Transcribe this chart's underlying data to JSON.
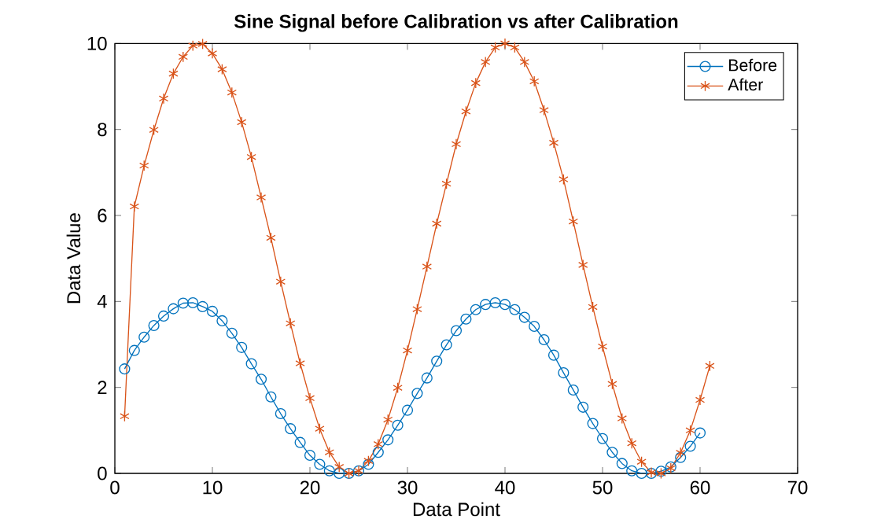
{
  "chart_data": {
    "type": "line",
    "title": "Sine Signal before Calibration vs after Calibration",
    "xlabel": "Data Point",
    "ylabel": "Data Value",
    "xlim": [
      0,
      70
    ],
    "xticks": [
      0,
      10,
      20,
      30,
      40,
      50,
      60,
      70
    ],
    "ylim": [
      0,
      10
    ],
    "yticks": [
      0,
      2,
      4,
      6,
      8,
      10
    ],
    "grid": false,
    "legend": "top right",
    "line_style": "solid",
    "series": [
      {
        "name": "Before",
        "color": "#0072bd",
        "marker": "circle",
        "x": [
          1,
          2,
          3,
          4,
          5,
          6,
          7,
          8,
          9,
          10,
          11,
          12,
          13,
          14,
          15,
          16,
          17,
          18,
          19,
          20,
          21,
          22,
          23,
          24,
          25,
          26,
          27,
          28,
          29,
          30,
          31,
          32,
          33,
          34,
          35,
          36,
          37,
          38,
          39,
          40,
          41,
          42,
          43,
          44,
          45,
          46,
          47,
          48,
          49,
          50,
          51,
          52,
          53,
          54,
          55,
          56,
          57,
          58,
          59,
          60
        ],
        "values": [
          2.43,
          2.86,
          3.17,
          3.44,
          3.66,
          3.83,
          3.96,
          3.97,
          3.88,
          3.77,
          3.55,
          3.26,
          2.93,
          2.55,
          2.19,
          1.78,
          1.39,
          1.04,
          0.72,
          0.42,
          0.21,
          0.06,
          0,
          0,
          0.06,
          0.21,
          0.49,
          0.78,
          1.12,
          1.47,
          1.86,
          2.22,
          2.61,
          2.99,
          3.32,
          3.59,
          3.81,
          3.93,
          3.97,
          3.93,
          3.81,
          3.63,
          3.42,
          3.11,
          2.75,
          2.34,
          1.94,
          1.54,
          1.16,
          0.81,
          0.49,
          0.23,
          0.06,
          0,
          0,
          0.05,
          0.15,
          0.37,
          0.63,
          0.94
        ]
      },
      {
        "name": "After",
        "color": "#d95319",
        "marker": "cross",
        "x": [
          1,
          2,
          3,
          4,
          5,
          6,
          7,
          8,
          9,
          10,
          11,
          12,
          13,
          14,
          15,
          16,
          17,
          18,
          19,
          20,
          21,
          22,
          23,
          24,
          25,
          26,
          27,
          28,
          29,
          30,
          31,
          32,
          33,
          34,
          35,
          36,
          37,
          38,
          39,
          40,
          41,
          42,
          43,
          44,
          45,
          46,
          47,
          48,
          49,
          50,
          51,
          52,
          53,
          54,
          55,
          56,
          57,
          58,
          59,
          60,
          61
        ],
        "values": [
          1.33,
          6.21,
          7.16,
          7.99,
          8.72,
          9.3,
          9.69,
          9.95,
          9.99,
          9.77,
          9.4,
          8.86,
          8.17,
          7.36,
          6.42,
          5.48,
          4.46,
          3.49,
          2.56,
          1.75,
          1.04,
          0.49,
          0.15,
          0,
          0.06,
          0.29,
          0.68,
          1.25,
          1.99,
          2.86,
          3.82,
          4.81,
          5.81,
          6.74,
          7.66,
          8.42,
          9.08,
          9.57,
          9.91,
          10,
          9.91,
          9.57,
          9.12,
          8.45,
          7.69,
          6.84,
          5.86,
          4.85,
          3.87,
          2.95,
          2.08,
          1.28,
          0.7,
          0.27,
          0.02,
          0,
          0.12,
          0.48,
          1.0,
          1.71,
          2.5
        ]
      }
    ]
  }
}
